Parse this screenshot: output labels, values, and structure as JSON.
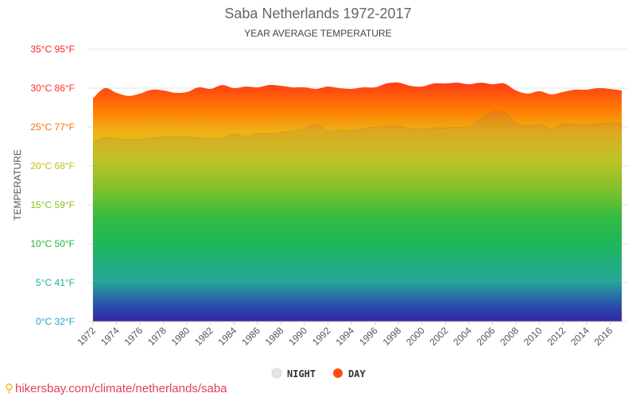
{
  "header": {
    "title": "Saba Netherlands 1972-2017",
    "subtitle": "YEAR AVERAGE TEMPERATURE"
  },
  "footer": {
    "pin_icon": "map-pin-icon",
    "link_text": "hikersbay.com/climate/netherlands/saba"
  },
  "legend": {
    "night_label": "NIGHT",
    "day_label": "DAY",
    "night_color": "#e6e6e6",
    "day_color": "#ff4d0d"
  },
  "chart_data": {
    "type": "area",
    "title": "Saba Netherlands 1972-2017",
    "subtitle": "YEAR AVERAGE TEMPERATURE",
    "ylabel": "TEMPERATURE",
    "xlabel": "",
    "ylim": [
      0,
      35
    ],
    "xlim": [
      1972,
      2017
    ],
    "grid": true,
    "legend_position": "bottom",
    "y_ticks": [
      {
        "value": 0,
        "label": "0°C 32°F",
        "color": "#1aa3cc"
      },
      {
        "value": 5,
        "label": "5°C 41°F",
        "color": "#1bb3a3"
      },
      {
        "value": 10,
        "label": "10°C 50°F",
        "color": "#22b33c"
      },
      {
        "value": 15,
        "label": "15°C 59°F",
        "color": "#8cbf1e"
      },
      {
        "value": 20,
        "label": "20°C 68°F",
        "color": "#c7bf1a"
      },
      {
        "value": 25,
        "label": "25°C 77°F",
        "color": "#ff6a00"
      },
      {
        "value": 30,
        "label": "30°C 86°F",
        "color": "#ff2f1f"
      },
      {
        "value": 35,
        "label": "35°C 95°F",
        "color": "#ff1f1f"
      }
    ],
    "x_tick_labels": [
      "1972",
      "1974",
      "1976",
      "1978",
      "1980",
      "1982",
      "1984",
      "1986",
      "1988",
      "1990",
      "1992",
      "1994",
      "1996",
      "1998",
      "2000",
      "2002",
      "2004",
      "2006",
      "2008",
      "2010",
      "2012",
      "2014",
      "2016"
    ],
    "years": [
      1972,
      1973,
      1974,
      1975,
      1976,
      1977,
      1978,
      1979,
      1980,
      1981,
      1982,
      1983,
      1984,
      1985,
      1986,
      1987,
      1988,
      1989,
      1990,
      1991,
      1992,
      1993,
      1994,
      1995,
      1996,
      1997,
      1998,
      1999,
      2000,
      2001,
      2002,
      2003,
      2004,
      2005,
      2006,
      2007,
      2008,
      2009,
      2010,
      2011,
      2012,
      2013,
      2014,
      2015,
      2016,
      2017
    ],
    "series": [
      {
        "name": "DAY",
        "color": "#ff4d0d",
        "values": [
          28.7,
          30.0,
          29.4,
          29.0,
          29.3,
          29.8,
          29.7,
          29.4,
          29.5,
          30.1,
          29.9,
          30.4,
          30.0,
          30.2,
          30.1,
          30.4,
          30.3,
          30.1,
          30.1,
          29.9,
          30.2,
          30.0,
          29.9,
          30.1,
          30.1,
          30.6,
          30.7,
          30.3,
          30.2,
          30.6,
          30.6,
          30.7,
          30.5,
          30.7,
          30.5,
          30.6,
          29.7,
          29.3,
          29.6,
          29.2,
          29.5,
          29.8,
          29.8,
          30.0,
          29.9,
          29.7
        ]
      },
      {
        "name": "NIGHT",
        "color": "#e6e6e6",
        "values": [
          23.1,
          23.6,
          23.5,
          23.4,
          23.4,
          23.6,
          23.7,
          23.7,
          23.8,
          23.6,
          23.5,
          23.6,
          24.1,
          23.8,
          24.2,
          24.1,
          24.3,
          24.5,
          24.8,
          25.3,
          24.5,
          24.6,
          24.5,
          24.8,
          25.0,
          25.1,
          25.1,
          24.8,
          24.7,
          24.9,
          24.9,
          25.0,
          25.0,
          26.1,
          27.0,
          26.9,
          25.5,
          25.1,
          25.3,
          24.8,
          25.4,
          25.3,
          25.2,
          25.4,
          25.5,
          25.5
        ]
      }
    ]
  }
}
